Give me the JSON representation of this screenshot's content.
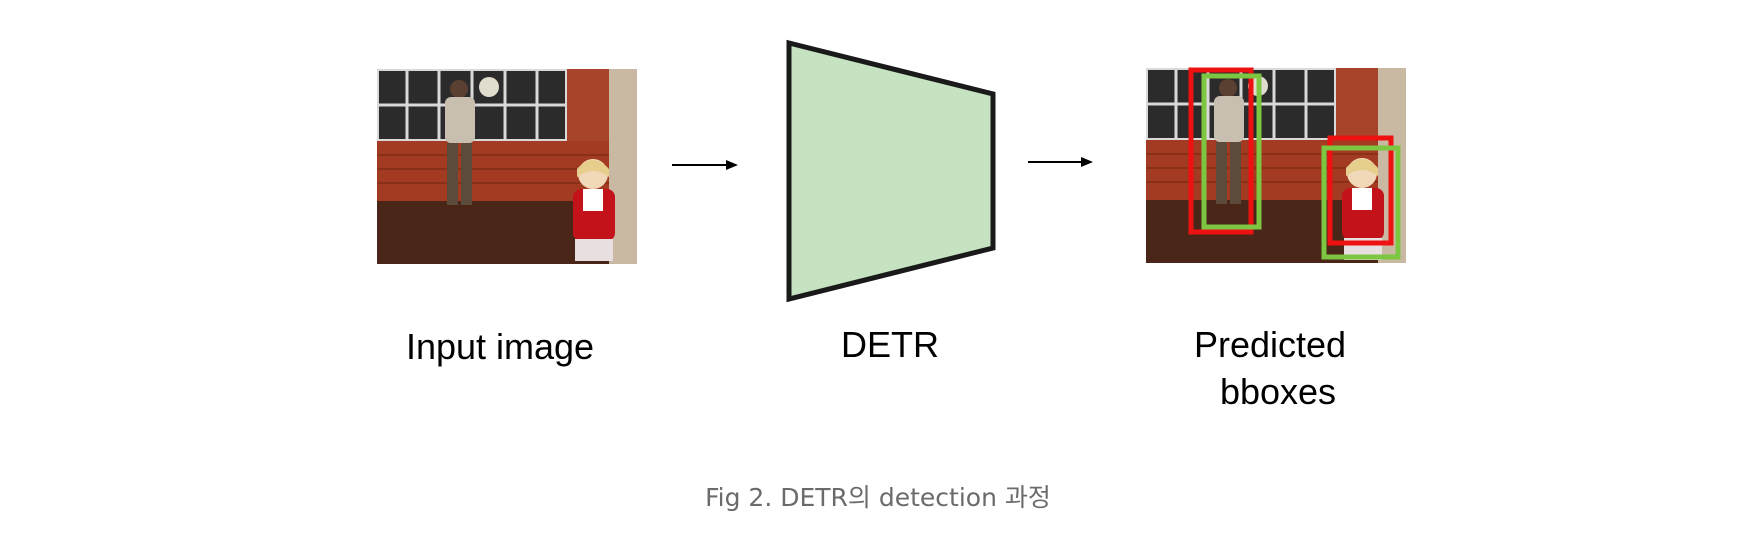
{
  "diagram": {
    "input_label": "Input image",
    "model_label": "DETR",
    "output_label_line1": "Predicted",
    "output_label_line2": "bboxes",
    "model_fill": "#c6e2c0",
    "model_stroke": "#1a1a1a",
    "pred_box_color": "#ee1111",
    "gt_box_color": "#7dc642",
    "arrow_color": "#000000"
  },
  "caption": "Fig 2. DETR의 detection 과정"
}
